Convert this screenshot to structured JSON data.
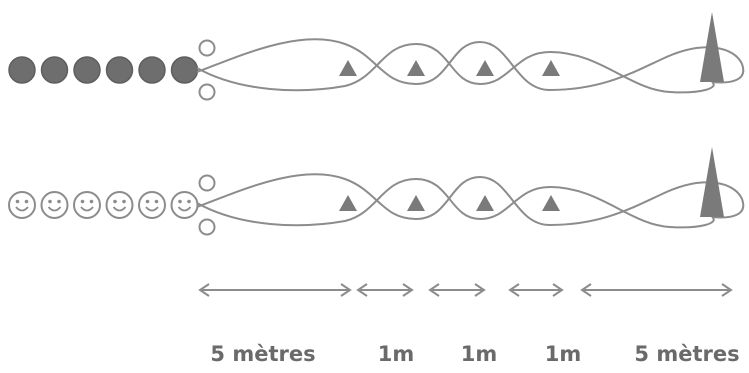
{
  "colors": {
    "stroke": "#8c8c8c",
    "dark_fill": "#6e6e6e",
    "light_fill": "#ffffff",
    "cone": "#7a7a7a",
    "label": "#6a6a6a"
  },
  "teams": [
    {
      "style": "filled",
      "players": 6,
      "start_markers": 2,
      "cones": 4,
      "finish_cone": 1
    },
    {
      "style": "smiley",
      "players": 6,
      "start_markers": 2,
      "cones": 4,
      "finish_cone": 1
    }
  ],
  "distances": [
    {
      "label": "5 mètres",
      "arrow": "double-headed"
    },
    {
      "label": "1m",
      "arrow": "double-headed"
    },
    {
      "label": "1m",
      "arrow": "double-headed"
    },
    {
      "label": "1m",
      "arrow": "double-headed"
    },
    {
      "label": "5 mètres",
      "arrow": "double-headed"
    }
  ]
}
